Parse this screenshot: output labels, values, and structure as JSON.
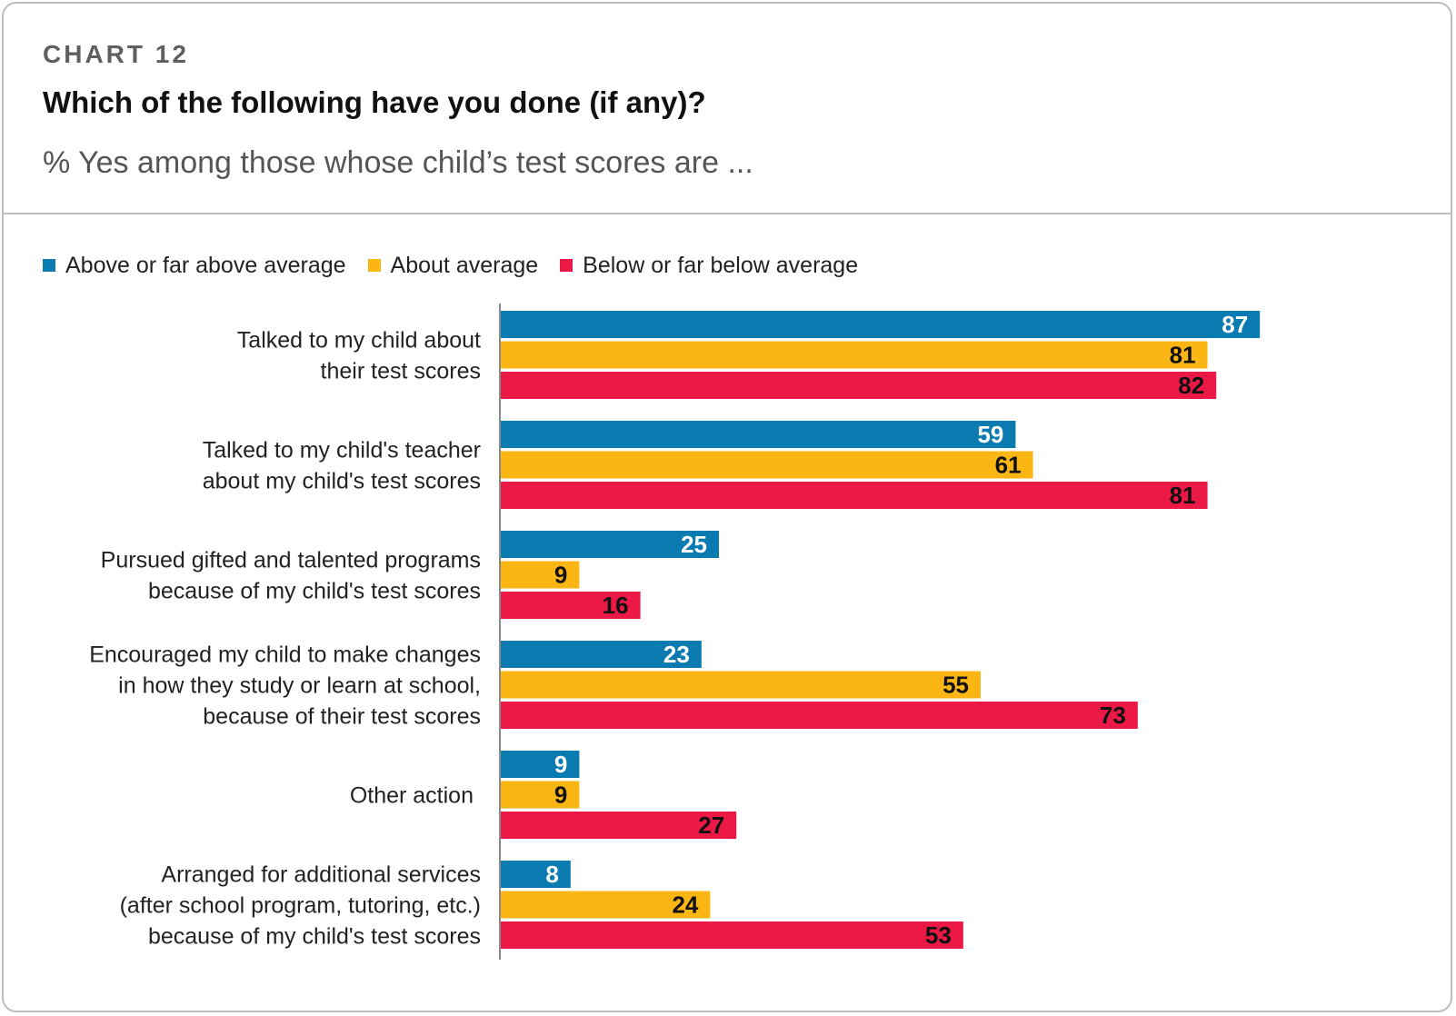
{
  "header": {
    "eyebrow": "CHART 12",
    "title": "Which of the following have you done (if any)?",
    "subtitle": "% Yes among those whose child’s test scores are ..."
  },
  "chart_data": {
    "type": "bar",
    "orientation": "horizontal",
    "categories": [
      [
        "Talked to my child about",
        "their test scores"
      ],
      [
        "Talked to my child's teacher",
        "about my child's test scores"
      ],
      [
        "Pursued gifted and talented programs",
        "because of my child's test scores"
      ],
      [
        "Encouraged my child to make changes",
        "in how they study or learn at school,",
        "because of their test scores"
      ],
      [
        "Other action"
      ],
      [
        "Arranged for additional services",
        "(after school program, tutoring, etc.)",
        "because of my child's test scores"
      ]
    ],
    "series": [
      {
        "name": "Above or far above average",
        "color": "#0a7bb0",
        "label_color": "#ffffff",
        "values": [
          87,
          59,
          25,
          23,
          9,
          8
        ]
      },
      {
        "name": "About average",
        "color": "#fbb614",
        "label_color": "#111111",
        "values": [
          81,
          61,
          9,
          55,
          9,
          24
        ]
      },
      {
        "name": "Below or far below average",
        "color": "#ec1846",
        "label_color": "#111111",
        "values": [
          82,
          81,
          16,
          73,
          27,
          53
        ]
      }
    ],
    "xlim": [
      0,
      100
    ],
    "legend_position": "top-left",
    "grid": false,
    "data_labels": "inside-end"
  }
}
